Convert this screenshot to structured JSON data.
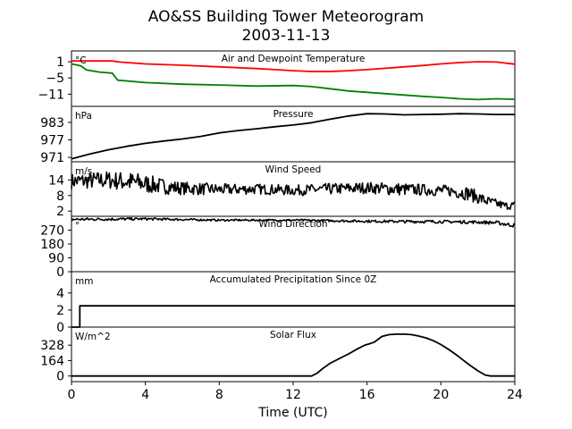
{
  "figure": {
    "title_line1": "AO&SS Building Tower Meteorogram",
    "title_line2": "2003-11-13",
    "xlabel": "Time (UTC)"
  },
  "chart_data": {
    "type": "line",
    "xlim": [
      0,
      24
    ],
    "xticks": [
      "0",
      "4",
      "8",
      "12",
      "16",
      "20",
      "24"
    ],
    "panels": [
      {
        "id": "temperature",
        "title": "Air and Dewpoint Temperature",
        "unit": "°C",
        "ylim": [
          -15.5,
          5
        ],
        "yticks": [
          1,
          -5,
          -11
        ],
        "series": [
          {
            "color": "#ff0000",
            "x": [
              0,
              1,
              2.2,
              2.6,
              4,
              6,
              8,
              10,
              11,
              12,
              13,
              14,
              15,
              16,
              17,
              18,
              19,
              20,
              21,
              22,
              23,
              24
            ],
            "y": [
              1.3,
              1.3,
              1.3,
              0.9,
              0.2,
              -0.3,
              -0.9,
              -1.5,
              -1.9,
              -2.3,
              -2.6,
              -2.6,
              -2.3,
              -1.9,
              -1.4,
              -0.9,
              -0.4,
              0.2,
              0.7,
              1.0,
              0.9,
              0.1
            ]
          },
          {
            "color": "#008000",
            "x": [
              0,
              0.5,
              0.8,
              1.5,
              2.2,
              2.5,
              4,
              6,
              8,
              10,
              12,
              13,
              14,
              15,
              16,
              17,
              18,
              19,
              20,
              21,
              22,
              23,
              24
            ],
            "y": [
              0.2,
              -0.5,
              -2.0,
              -2.8,
              -3.2,
              -5.8,
              -6.7,
              -7.3,
              -7.6,
              -8.0,
              -7.8,
              -8.2,
              -9.0,
              -9.8,
              -10.3,
              -10.8,
              -11.3,
              -11.8,
              -12.2,
              -12.7,
              -13.0,
              -12.7,
              -12.9
            ]
          }
        ]
      },
      {
        "id": "pressure",
        "title": "Pressure",
        "unit": "hPa",
        "ylim": [
          969.5,
          988.5
        ],
        "yticks": [
          983,
          977,
          971
        ],
        "series": [
          {
            "color": "#000000",
            "x": [
              0,
              1,
              2,
              3,
              4,
              5,
              6,
              7,
              8,
              9,
              10,
              11,
              12,
              13,
              14,
              15,
              16,
              17,
              18,
              19,
              20,
              21,
              22,
              23,
              24
            ],
            "y": [
              970.5,
              972.2,
              973.6,
              974.8,
              975.8,
              976.6,
              977.3,
              978.2,
              979.4,
              980.2,
              980.8,
              981.5,
              982.1,
              982.9,
              984.1,
              985.2,
              986.0,
              985.9,
              985.6,
              985.7,
              985.8,
              986.0,
              985.9,
              985.7,
              985.7
            ]
          }
        ]
      },
      {
        "id": "wind_speed",
        "title": "Wind Speed",
        "unit": "m/s",
        "ylim": [
          0,
          21
        ],
        "yticks": [
          14,
          8,
          2
        ],
        "series": [
          {
            "color": "#000000",
            "x": [
              0,
              2,
              3.5,
              5,
              6,
              8,
              10,
              12,
              14,
              16,
              17.5,
              19,
              20.5,
              21.5,
              22.5,
              23.5,
              24
            ],
            "y": [
              13.5,
              14.0,
              13.0,
              11.5,
              10.8,
              10.3,
              10.5,
              10.0,
              10.5,
              11.0,
              10.5,
              10.2,
              9.8,
              8.8,
              5.8,
              4.0,
              4.3
            ],
            "noise": [
              3.0,
              3.5,
              4.0,
              3.0,
              2.5,
              2.2,
              2.0,
              2.0,
              2.2,
              2.2,
              2.5,
              2.2,
              2.2,
              2.8,
              2.0,
              1.5,
              1.5
            ]
          }
        ]
      },
      {
        "id": "wind_direction",
        "title": "Wind Direction",
        "unit": "°",
        "ylim": [
          0,
          360
        ],
        "yticks": [
          270,
          180,
          90,
          0
        ],
        "series": [
          {
            "color": "#000000",
            "x": [
              0,
              4,
              8,
              12,
              16,
              20,
              22,
              23,
              24
            ],
            "y": [
              340,
              343,
              335,
              335,
              328,
              325,
              322,
              318,
              300
            ],
            "noise": [
              10,
              8,
              6,
              6,
              8,
              10,
              10,
              12,
              12
            ]
          }
        ]
      },
      {
        "id": "precipitation",
        "title": "Accumulated Precipitation Since 0Z",
        "unit": "mm",
        "ylim": [
          0,
          6.5
        ],
        "yticks": [
          4,
          2,
          0
        ],
        "series": [
          {
            "color": "#000000",
            "x": [
              0,
              0.45,
              0.45,
              24
            ],
            "y": [
              0,
              0,
              2.5,
              2.5
            ]
          }
        ]
      },
      {
        "id": "solar_flux",
        "title": "Solar Flux",
        "unit": "W/m^2",
        "ylim": [
          -60,
          520
        ],
        "yticks": [
          328,
          164,
          0
        ],
        "series": [
          {
            "color": "#000000",
            "x": [
              0,
              13.0,
              13.3,
              13.6,
              14,
              14.5,
              15,
              15.5,
              15.9,
              16.1,
              16.4,
              16.8,
              17.2,
              17.6,
              18,
              18.4,
              18.8,
              19.2,
              19.6,
              20,
              20.4,
              20.8,
              21.2,
              21.6,
              22,
              22.4,
              22.7,
              24
            ],
            "y": [
              0,
              0,
              30,
              80,
              135,
              185,
              235,
              290,
              330,
              340,
              360,
              420,
              440,
              445,
              445,
              440,
              425,
              405,
              375,
              335,
              285,
              230,
              170,
              110,
              55,
              10,
              0,
              0
            ]
          }
        ]
      }
    ]
  }
}
